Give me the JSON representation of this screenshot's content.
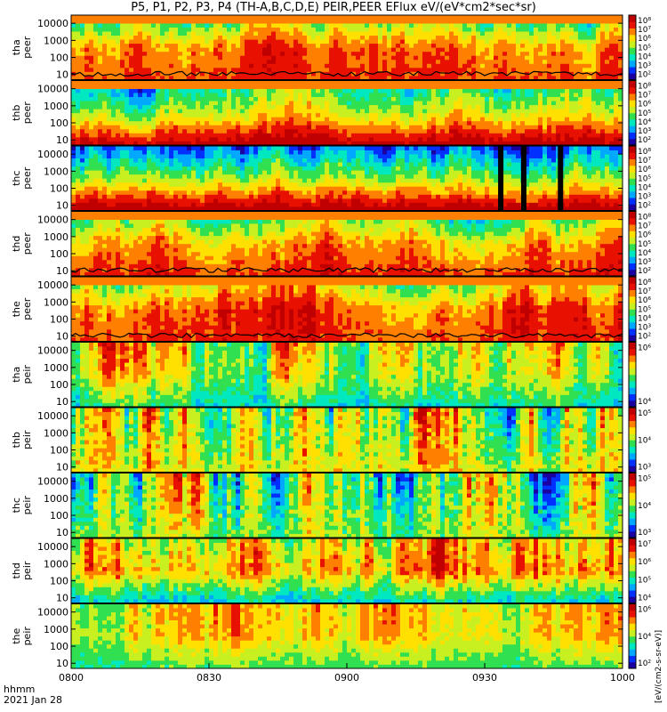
{
  "title": "P5, P1, P2, P3, P4 (TH-A,B,C,D,E) PEIR,PEER EFlux eV/(eV*cm2*sec*sr)",
  "x_axis": {
    "ticks": [
      "0800",
      "0830",
      "0900",
      "0930",
      "1000"
    ],
    "left_label": "hhmm",
    "date": "2021 Jan 28"
  },
  "colorbar_unit": "[eV/(cm2-s-sr-eV)]",
  "colors": {
    "scale": [
      "#1a00a0",
      "#0030ff",
      "#00a8ff",
      "#00e8c0",
      "#30e050",
      "#c8f020",
      "#ffe000",
      "#ff8000",
      "#e81000",
      "#c00000"
    ]
  },
  "chart_data": [
    {
      "type": "heatmap",
      "label_top": "tha",
      "label_bot": "peer",
      "yticks": [
        "10000",
        "1000",
        "100",
        "10"
      ],
      "ylim": [
        5,
        30000
      ],
      "yscale": "log",
      "cticks": [
        "10⁸",
        "10⁷",
        "10⁶",
        "10⁵",
        "10⁴",
        "10³",
        "10²"
      ],
      "crange": [
        2,
        8
      ],
      "level_low": 6.9,
      "level_mid": 6.6,
      "level_high": 4.6,
      "top_band": 0.1,
      "edge_cut": [
        2,
        0.1
      ]
    },
    {
      "type": "heatmap",
      "label_top": "thb",
      "label_bot": "peer",
      "yticks": [
        "10000",
        "1000",
        "100",
        "10"
      ],
      "ylim": [
        5,
        30000
      ],
      "yscale": "log",
      "cticks": [
        "10⁸",
        "10⁷",
        "10⁶",
        "10⁵",
        "10⁴",
        "10³",
        "10²"
      ],
      "crange": [
        2,
        8
      ],
      "level_low": 7.8,
      "level_mid": 5.6,
      "level_high": 4.2,
      "top_band": 0.2,
      "edge_cut": [
        0,
        0
      ]
    },
    {
      "type": "heatmap",
      "label_top": "thc",
      "label_bot": "peer",
      "yticks": [
        "10000",
        "1000",
        "100",
        "10"
      ],
      "ylim": [
        5,
        30000
      ],
      "yscale": "log",
      "cticks": [
        "10⁸",
        "10⁷",
        "10⁶",
        "10⁵",
        "10⁴",
        "10³",
        "10²"
      ],
      "crange": [
        2,
        8
      ],
      "level_low": 7.9,
      "level_mid": 5.2,
      "level_high": 3.2,
      "top_band": 0,
      "edge_cut": [
        0,
        0
      ],
      "gaps_min": [
        93.5,
        98.5,
        106.5
      ]
    },
    {
      "type": "heatmap",
      "label_top": "thd",
      "label_bot": "peer",
      "yticks": [
        "10000",
        "1000",
        "100",
        "10"
      ],
      "ylim": [
        5,
        30000
      ],
      "yscale": "log",
      "cticks": [
        "10⁸",
        "10⁷",
        "10⁶",
        "10⁵",
        "10⁴",
        "10³",
        "10²"
      ],
      "crange": [
        2,
        8
      ],
      "level_low": 7.0,
      "level_mid": 6.2,
      "level_high": 4.4,
      "top_band": 0.1,
      "edge_cut": [
        2,
        0.1
      ]
    },
    {
      "type": "heatmap",
      "label_top": "the",
      "label_bot": "peer",
      "yticks": [
        "10000",
        "1000",
        "100",
        "10"
      ],
      "ylim": [
        5,
        30000
      ],
      "yscale": "log",
      "cticks": [
        "10⁸",
        "10⁷",
        "10⁶",
        "10⁵",
        "10⁴",
        "10³",
        "10²"
      ],
      "crange": [
        2,
        8
      ],
      "level_low": 7.0,
      "level_mid": 6.8,
      "level_high": 5.2,
      "top_band": 0.1,
      "edge_cut": [
        2,
        0.1
      ]
    },
    {
      "type": "heatmap",
      "label_top": "tha",
      "label_bot": "peir",
      "yticks": [
        "10000",
        "1000",
        "100",
        "10"
      ],
      "ylim": [
        5,
        30000
      ],
      "yscale": "log",
      "cticks": [
        "10⁶",
        "10⁴"
      ],
      "crange": [
        3,
        7
      ],
      "level_low": 4.6,
      "level_mid": 5.4,
      "level_high": 5.6,
      "top_band": 0,
      "edge_cut": [
        0,
        0
      ]
    },
    {
      "type": "heatmap",
      "label_top": "thb",
      "label_bot": "peir",
      "yticks": [
        "10000",
        "1000",
        "100",
        "10"
      ],
      "ylim": [
        5,
        30000
      ],
      "yscale": "log",
      "cticks": [
        "10⁵",
        "10⁴",
        "10³"
      ],
      "crange": [
        2.5,
        5.5
      ],
      "level_low": 4.4,
      "level_mid": 4.3,
      "level_high": 4.3,
      "top_band": 0,
      "edge_cut": [
        0,
        0
      ]
    },
    {
      "type": "heatmap",
      "label_top": "thc",
      "label_bot": "peir",
      "yticks": [
        "10000",
        "1000",
        "100",
        "10"
      ],
      "ylim": [
        5,
        30000
      ],
      "yscale": "log",
      "cticks": [
        "10⁵",
        "10⁴",
        "10³"
      ],
      "crange": [
        2.5,
        5.5
      ],
      "level_low": 4.0,
      "level_mid": 3.9,
      "level_high": 3.8,
      "top_band": 0,
      "edge_cut": [
        0,
        0
      ]
    },
    {
      "type": "heatmap",
      "label_top": "thd",
      "label_bot": "peir",
      "yticks": [
        "10000",
        "1000",
        "100",
        "10"
      ],
      "ylim": [
        5,
        30000
      ],
      "yscale": "log",
      "cticks": [
        "10⁷",
        "10⁶",
        "10⁵",
        "10⁴"
      ],
      "crange": [
        3.5,
        7.5
      ],
      "level_low": 4.8,
      "level_mid": 6.4,
      "level_high": 6.0,
      "top_band": 0,
      "edge_cut": [
        0,
        0
      ]
    },
    {
      "type": "heatmap",
      "label_top": "the",
      "label_bot": "peir",
      "yticks": [
        "10000",
        "1000",
        "100",
        "10"
      ],
      "ylim": [
        5,
        30000
      ],
      "yscale": "log",
      "cticks": [
        "10⁶",
        "10⁴",
        "10²"
      ],
      "crange": [
        1.5,
        7.5
      ],
      "level_low": 4.2,
      "level_mid": 5.4,
      "level_high": 5.4,
      "top_band": 0,
      "edge_cut": [
        0,
        0
      ]
    }
  ]
}
